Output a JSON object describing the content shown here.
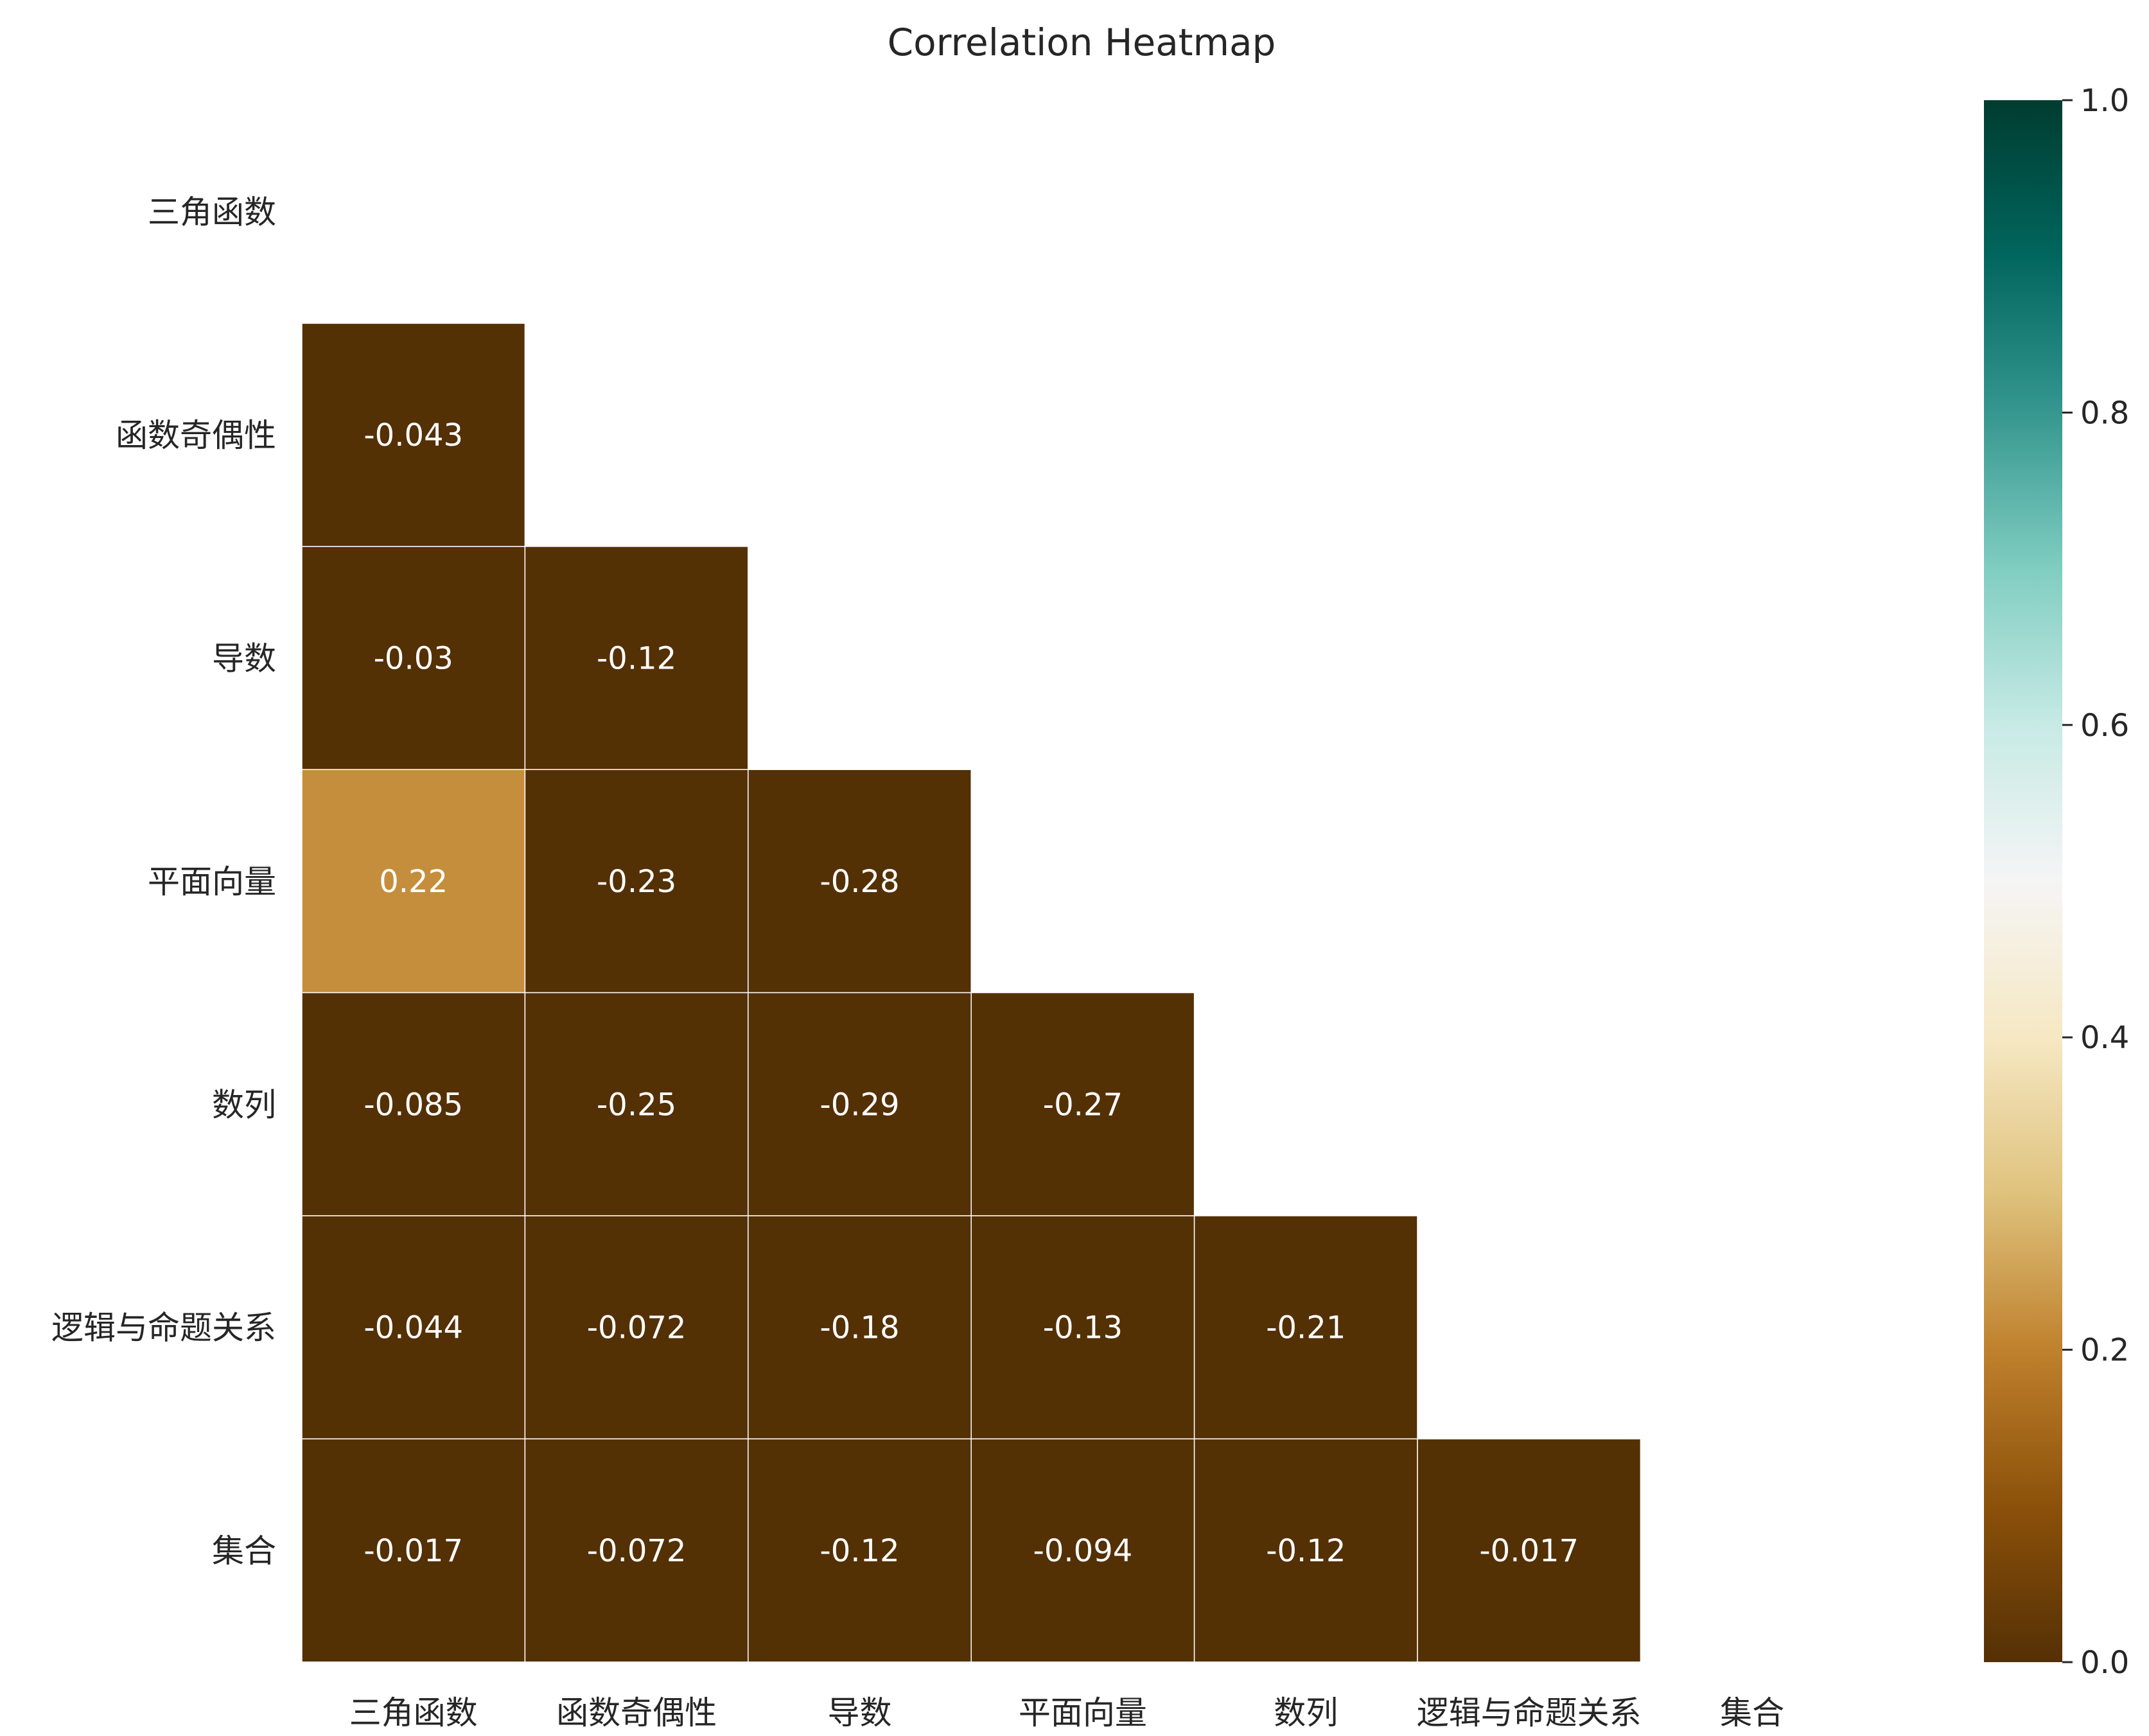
{
  "chart_data": {
    "type": "heatmap",
    "title": "Correlation Heatmap",
    "xlabel": "",
    "ylabel": "",
    "labels": [
      "三角函数",
      "函数奇偶性",
      "导数",
      "平面向量",
      "数列",
      "逻辑与命题关系",
      "集合"
    ],
    "mask": "upper-triangle-including-diagonal",
    "cells": [
      {
        "row": 1,
        "col": 0,
        "value": -0.043,
        "label": "-0.043"
      },
      {
        "row": 2,
        "col": 0,
        "value": -0.03,
        "label": "-0.03"
      },
      {
        "row": 2,
        "col": 1,
        "value": -0.12,
        "label": "-0.12"
      },
      {
        "row": 3,
        "col": 0,
        "value": 0.22,
        "label": "0.22"
      },
      {
        "row": 3,
        "col": 1,
        "value": -0.23,
        "label": "-0.23"
      },
      {
        "row": 3,
        "col": 2,
        "value": -0.28,
        "label": "-0.28"
      },
      {
        "row": 4,
        "col": 0,
        "value": -0.085,
        "label": "-0.085"
      },
      {
        "row": 4,
        "col": 1,
        "value": -0.25,
        "label": "-0.25"
      },
      {
        "row": 4,
        "col": 2,
        "value": -0.29,
        "label": "-0.29"
      },
      {
        "row": 4,
        "col": 3,
        "value": -0.27,
        "label": "-0.27"
      },
      {
        "row": 5,
        "col": 0,
        "value": -0.044,
        "label": "-0.044"
      },
      {
        "row": 5,
        "col": 1,
        "value": -0.072,
        "label": "-0.072"
      },
      {
        "row": 5,
        "col": 2,
        "value": -0.18,
        "label": "-0.18"
      },
      {
        "row": 5,
        "col": 3,
        "value": -0.13,
        "label": "-0.13"
      },
      {
        "row": 5,
        "col": 4,
        "value": -0.21,
        "label": "-0.21"
      },
      {
        "row": 6,
        "col": 0,
        "value": -0.017,
        "label": "-0.017"
      },
      {
        "row": 6,
        "col": 1,
        "value": -0.072,
        "label": "-0.072"
      },
      {
        "row": 6,
        "col": 2,
        "value": -0.12,
        "label": "-0.12"
      },
      {
        "row": 6,
        "col": 3,
        "value": -0.094,
        "label": "-0.094"
      },
      {
        "row": 6,
        "col": 4,
        "value": -0.12,
        "label": "-0.12"
      },
      {
        "row": 6,
        "col": 5,
        "value": -0.017,
        "label": "-0.017"
      }
    ],
    "colorbar": {
      "vmin": 0.0,
      "vmax": 1.0,
      "ticks": [
        0.0,
        0.2,
        0.4,
        0.6,
        0.8,
        1.0
      ],
      "tick_labels": [
        "0.0",
        "0.2",
        "0.4",
        "0.6",
        "0.8",
        "1.0"
      ],
      "colormap": "BrBG",
      "stops": [
        "#543005",
        "#8c510a",
        "#bf812d",
        "#dfc27d",
        "#f6e8c3",
        "#f5f5f5",
        "#c7eae5",
        "#80cdc1",
        "#35978f",
        "#01665e",
        "#003c30"
      ]
    },
    "grid": false,
    "legend": "colorbar-right"
  }
}
